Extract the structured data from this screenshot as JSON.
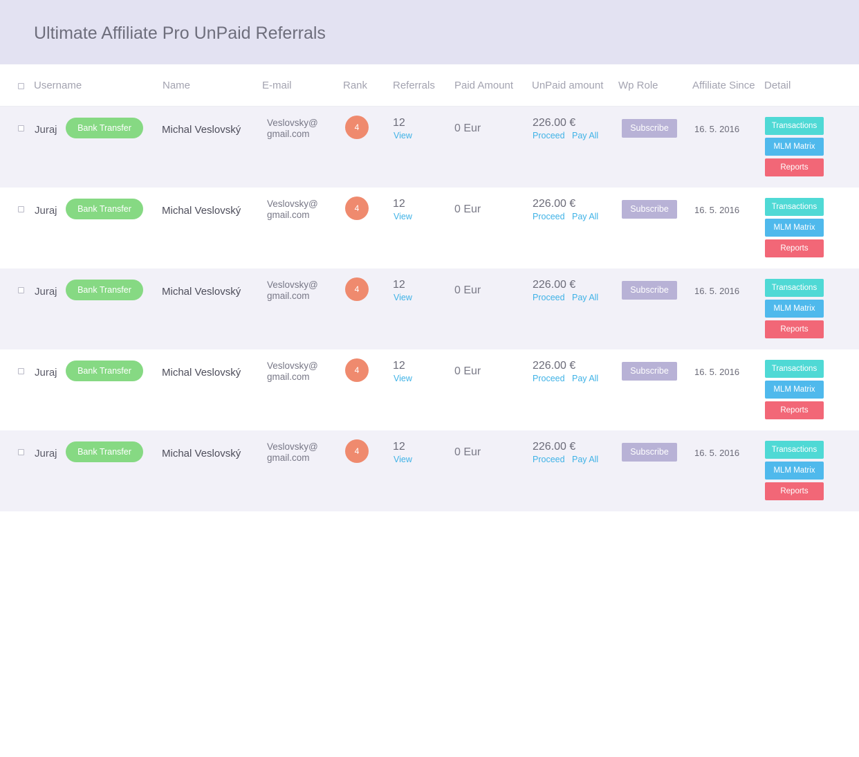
{
  "page": {
    "title": "Ultimate Affiliate Pro UnPaid Referrals"
  },
  "table": {
    "headers": {
      "username": "Username",
      "name": "Name",
      "email": "E-mail",
      "rank": "Rank",
      "referrals": "Referrals",
      "paid_amount": "Paid Amount",
      "unpaid_amount": "UnPaid amount",
      "wp_role": "Wp Role",
      "affiliate_since": "Affiliate Since",
      "detail": "Detail"
    },
    "rows": [
      {
        "username": "Juraj",
        "payment_method": "Bank Transfer",
        "name": "Michal Veslovský",
        "email_line1": "Veslovsky@",
        "email_line2": "gmail.com",
        "rank": "4",
        "referrals": "12",
        "view_label": "View",
        "paid": "0 Eur",
        "unpaid": "226.00 €",
        "proceed_label": "Proceed",
        "payall_label": "Pay All",
        "role": "Subscribe",
        "since": "16. 5. 2016",
        "btn_transactions": "Transactions",
        "btn_mlm": "MLM Matrix",
        "btn_reports": "Reports"
      },
      {
        "username": "Juraj",
        "payment_method": "Bank Transfer",
        "name": "Michal Veslovský",
        "email_line1": "Veslovsky@",
        "email_line2": "gmail.com",
        "rank": "4",
        "referrals": "12",
        "view_label": "View",
        "paid": "0 Eur",
        "unpaid": "226.00 €",
        "proceed_label": "Proceed",
        "payall_label": "Pay All",
        "role": "Subscribe",
        "since": "16. 5. 2016",
        "btn_transactions": "Transactions",
        "btn_mlm": "MLM Matrix",
        "btn_reports": "Reports"
      },
      {
        "username": "Juraj",
        "payment_method": "Bank Transfer",
        "name": "Michal Veslovský",
        "email_line1": "Veslovsky@",
        "email_line2": "gmail.com",
        "rank": "4",
        "referrals": "12",
        "view_label": "View",
        "paid": "0 Eur",
        "unpaid": "226.00 €",
        "proceed_label": "Proceed",
        "payall_label": "Pay All",
        "role": "Subscribe",
        "since": "16. 5. 2016",
        "btn_transactions": "Transactions",
        "btn_mlm": "MLM Matrix",
        "btn_reports": "Reports"
      },
      {
        "username": "Juraj",
        "payment_method": "Bank Transfer",
        "name": "Michal Veslovský",
        "email_line1": "Veslovsky@",
        "email_line2": "gmail.com",
        "rank": "4",
        "referrals": "12",
        "view_label": "View",
        "paid": "0 Eur",
        "unpaid": "226.00 €",
        "proceed_label": "Proceed",
        "payall_label": "Pay All",
        "role": "Subscribe",
        "since": "16. 5. 2016",
        "btn_transactions": "Transactions",
        "btn_mlm": "MLM Matrix",
        "btn_reports": "Reports"
      },
      {
        "username": "Juraj",
        "payment_method": "Bank Transfer",
        "name": "Michal Veslovský",
        "email_line1": "Veslovsky@",
        "email_line2": "gmail.com",
        "rank": "4",
        "referrals": "12",
        "view_label": "View",
        "paid": "0 Eur",
        "unpaid": "226.00 €",
        "proceed_label": "Proceed",
        "payall_label": "Pay All",
        "role": "Subscribe",
        "since": "16. 5. 2016",
        "btn_transactions": "Transactions",
        "btn_mlm": "MLM Matrix",
        "btn_reports": "Reports"
      }
    ]
  },
  "colors": {
    "header_bg": "#e3e2f2",
    "row_shaded": "#f2f1f8",
    "payment_pill": "#86d983",
    "rank_badge": "#ef8a6e",
    "link": "#3fb2e6",
    "role_badge": "#b8b2d6",
    "btn_transactions": "#4fd9d5",
    "btn_mlm": "#4fb9ec",
    "btn_reports": "#f26777"
  }
}
